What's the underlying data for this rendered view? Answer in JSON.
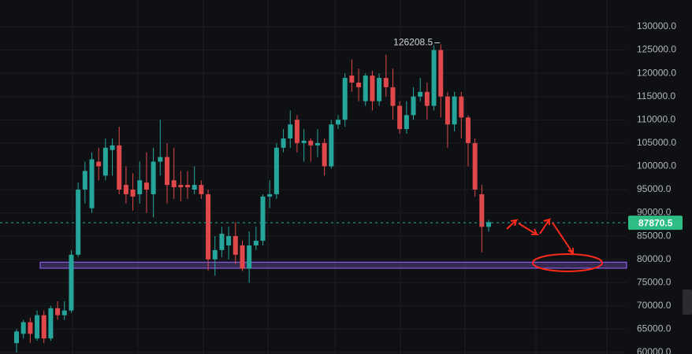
{
  "chart_data": {
    "type": "candlestick",
    "ylim": [
      59660,
      135750
    ],
    "yticks": [
      {
        "value": 60000,
        "label": "60000.0"
      },
      {
        "value": 65000,
        "label": "65000.0"
      },
      {
        "value": 70000,
        "label": "70000.0"
      },
      {
        "value": 75000,
        "label": "75000.0"
      },
      {
        "value": 80000,
        "label": "80000.0"
      },
      {
        "value": 85000,
        "label": "85000.0"
      },
      {
        "value": 90000,
        "label": "90000.0"
      },
      {
        "value": 95000,
        "label": "95000.0"
      },
      {
        "value": 100000,
        "label": "100000.0"
      },
      {
        "value": 105000,
        "label": "105000.0"
      },
      {
        "value": 110000,
        "label": "110000.0"
      },
      {
        "value": 115000,
        "label": "115000.0"
      },
      {
        "value": 120000,
        "label": "120000.0"
      },
      {
        "value": 125000,
        "label": "125000.0"
      },
      {
        "value": 130000,
        "label": "130000.0"
      }
    ],
    "grid": true,
    "up_color": "#26a69a",
    "down_color": "#e0484b",
    "open": [
      62000,
      64000,
      66500,
      63000,
      68000,
      63000,
      69500,
      68000,
      69000,
      81000,
      95000,
      91000,
      101000,
      98000,
      103500,
      104500,
      96000,
      95000,
      94000,
      96500,
      94000,
      101000,
      102000,
      97000,
      96000,
      96000,
      95000,
      96000,
      94000,
      80000,
      82000,
      83000,
      85000,
      83000,
      78000,
      83000,
      84000,
      93500,
      94000,
      104000,
      106000,
      110000,
      105000,
      105500,
      104500,
      105000,
      100000,
      109000,
      110000,
      119500,
      118000,
      114000,
      119500,
      114000,
      119000,
      117000,
      113000,
      108000,
      111000,
      115000,
      116000,
      113000,
      125000,
      115000,
      109000,
      115000,
      110500,
      105000,
      94000,
      87000
    ],
    "high": [
      65000,
      67000,
      67500,
      69000,
      69000,
      70000,
      71000,
      71000,
      82000,
      96500,
      101000,
      103000,
      104000,
      106000,
      106000,
      108500,
      100000,
      98500,
      101000,
      103000,
      104000,
      110000,
      105000,
      104000,
      99000,
      99000,
      100000,
      97000,
      95000,
      85000,
      87000,
      87000,
      88000,
      84000,
      86000,
      87000,
      94000,
      97000,
      105000,
      108000,
      112000,
      111000,
      108000,
      106000,
      108000,
      106000,
      110000,
      111000,
      120000,
      123000,
      121000,
      120000,
      120500,
      120000,
      124000,
      121000,
      114000,
      114000,
      117000,
      119000,
      118000,
      126000,
      126208.5,
      116000,
      116000,
      116000,
      111000,
      106000,
      96000,
      88500
    ],
    "low": [
      60000,
      63000,
      62000,
      62500,
      62000,
      62500,
      67000,
      67000,
      68500,
      80500,
      92000,
      90000,
      97000,
      97000,
      98000,
      94000,
      92000,
      90500,
      92000,
      90000,
      89000,
      98000,
      92000,
      93000,
      92500,
      93000,
      94000,
      93000,
      77500,
      76500,
      80500,
      80000,
      79000,
      77500,
      75000,
      82000,
      83000,
      91000,
      93000,
      103000,
      104000,
      103000,
      101000,
      101000,
      102000,
      98000,
      99500,
      108000,
      108500,
      116000,
      114000,
      113000,
      112000,
      113000,
      115000,
      110000,
      107000,
      107000,
      110000,
      114000,
      110000,
      112000,
      110500,
      104000,
      107500,
      106000,
      100000,
      93500,
      81500,
      86000
    ],
    "close": [
      64500,
      66500,
      64000,
      68000,
      63000,
      69500,
      68000,
      69000,
      81000,
      95000,
      99000,
      101500,
      100000,
      104000,
      104500,
      95000,
      94000,
      93500,
      97000,
      95000,
      101000,
      102000,
      96000,
      95500,
      95500,
      95500,
      96000,
      94000,
      80000,
      82000,
      85500,
      85000,
      81000,
      78000,
      83000,
      84000,
      93500,
      94000,
      104000,
      106000,
      109000,
      105000,
      105500,
      104500,
      105000,
      100000,
      109000,
      110000,
      119000,
      118000,
      117000,
      119500,
      114000,
      119000,
      117000,
      113000,
      108000,
      111000,
      115000,
      116000,
      113000,
      125000,
      115000,
      109000,
      115000,
      110500,
      105000,
      95000,
      87000,
      88000
    ],
    "last_price": 87870.5,
    "high_annotation": 126208.5,
    "zone": [
      78100,
      79400
    ]
  }
}
